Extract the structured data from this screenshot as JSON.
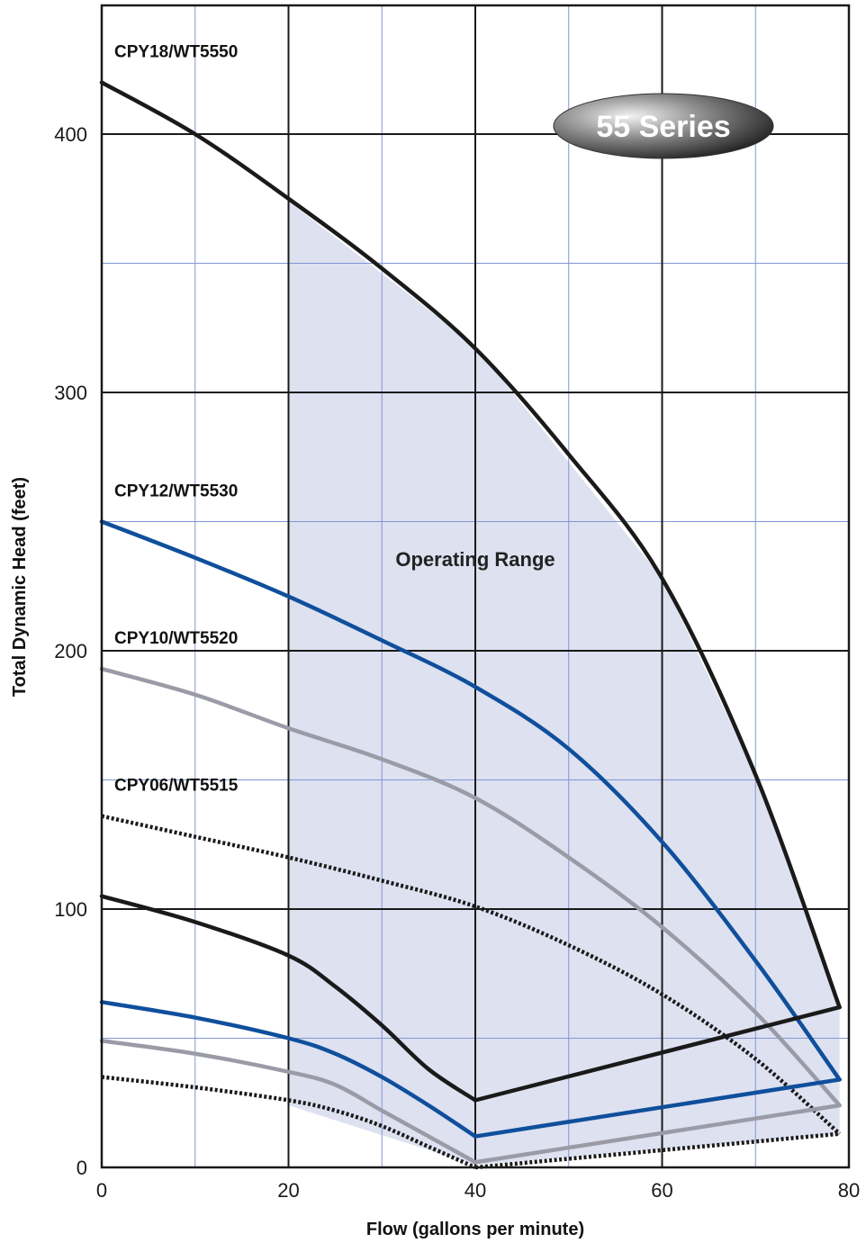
{
  "chart_data": {
    "type": "line",
    "title": "",
    "badge": "55 Series",
    "xlabel": "Flow (gallons per minute)",
    "ylabel": "Total Dynamic Head (feet)",
    "xlim": [
      0,
      80
    ],
    "ylim": [
      0,
      450
    ],
    "x_major_ticks": [
      0,
      20,
      40,
      60,
      80
    ],
    "x_minor_ticks": [
      10,
      30,
      50,
      70
    ],
    "y_major_ticks": [
      0,
      100,
      200,
      300,
      400
    ],
    "y_minor_ticks": [
      50,
      150,
      250,
      350
    ],
    "grid": true,
    "colors": {
      "black": "#1a1a1a",
      "blue": "#0f4f9c",
      "gray": "#9a9ba6",
      "range_fill": "#dde1f0"
    },
    "operating_range": {
      "label": "Operating Range",
      "x": [
        20,
        40,
        60,
        70,
        79,
        79,
        70,
        60,
        40,
        20
      ],
      "y": [
        374,
        318,
        228,
        152,
        62,
        13,
        10,
        7,
        1,
        24
      ]
    },
    "labels": [
      {
        "text": "CPY18/WT5550",
        "series": 0
      },
      {
        "text": "CPY12/WT5530",
        "series": 2
      },
      {
        "text": "CPY10/WT5520",
        "series": 4
      },
      {
        "text": "CPY06/WT5515",
        "series": 6
      }
    ],
    "series": [
      {
        "x": [
          0,
          10,
          20,
          30,
          40,
          50,
          60,
          70,
          79
        ],
        "y": [
          420,
          400,
          375,
          348,
          317,
          276,
          228,
          152,
          62
        ],
        "color": "#1a1a1a",
        "dashed": false
      },
      {
        "x": [
          0,
          10,
          20,
          25,
          30,
          35,
          40
        ],
        "y": [
          105,
          95,
          82,
          70,
          55,
          38,
          26
        ],
        "color": "#1a1a1a",
        "dashed": false
      },
      {
        "x": [
          0,
          10,
          20,
          30,
          40,
          50,
          60,
          70,
          79
        ],
        "y": [
          250,
          236,
          221,
          204,
          186,
          162,
          126,
          80,
          34
        ],
        "color": "#0f4f9c",
        "dashed": false
      },
      {
        "x": [
          0,
          10,
          20,
          25,
          30,
          35,
          40
        ],
        "y": [
          64,
          58,
          50,
          44,
          35,
          24,
          12
        ],
        "color": "#0f4f9c",
        "dashed": false
      },
      {
        "x": [
          0,
          10,
          20,
          30,
          40,
          50,
          60,
          70,
          79
        ],
        "y": [
          193,
          183,
          170,
          158,
          143,
          120,
          93,
          60,
          24
        ],
        "color": "#9a9ba6",
        "dashed": false
      },
      {
        "x": [
          0,
          10,
          20,
          25,
          30,
          35,
          40
        ],
        "y": [
          49,
          44,
          37,
          32,
          22,
          12,
          2
        ],
        "color": "#9a9ba6",
        "dashed": false
      },
      {
        "x": [
          0,
          10,
          20,
          30,
          40,
          50,
          60,
          70,
          79
        ],
        "y": [
          136,
          128,
          120,
          111,
          101,
          86,
          67,
          42,
          13
        ],
        "color": "#1a1a1a",
        "dashed": true
      },
      {
        "x": [
          0,
          10,
          20,
          25,
          30,
          35,
          40
        ],
        "y": [
          35,
          31,
          26,
          22,
          16,
          8,
          0
        ],
        "color": "#1a1a1a",
        "dashed": true
      },
      {
        "x": [
          40,
          79
        ],
        "y": [
          26,
          62
        ],
        "color": "#1a1a1a",
        "dashed": false
      },
      {
        "x": [
          40,
          79
        ],
        "y": [
          12,
          34
        ],
        "color": "#0f4f9c",
        "dashed": false
      },
      {
        "x": [
          40,
          79
        ],
        "y": [
          2,
          24
        ],
        "color": "#9a9ba6",
        "dashed": false
      },
      {
        "x": [
          40,
          79
        ],
        "y": [
          0,
          13
        ],
        "color": "#1a1a1a",
        "dashed": true
      }
    ]
  }
}
